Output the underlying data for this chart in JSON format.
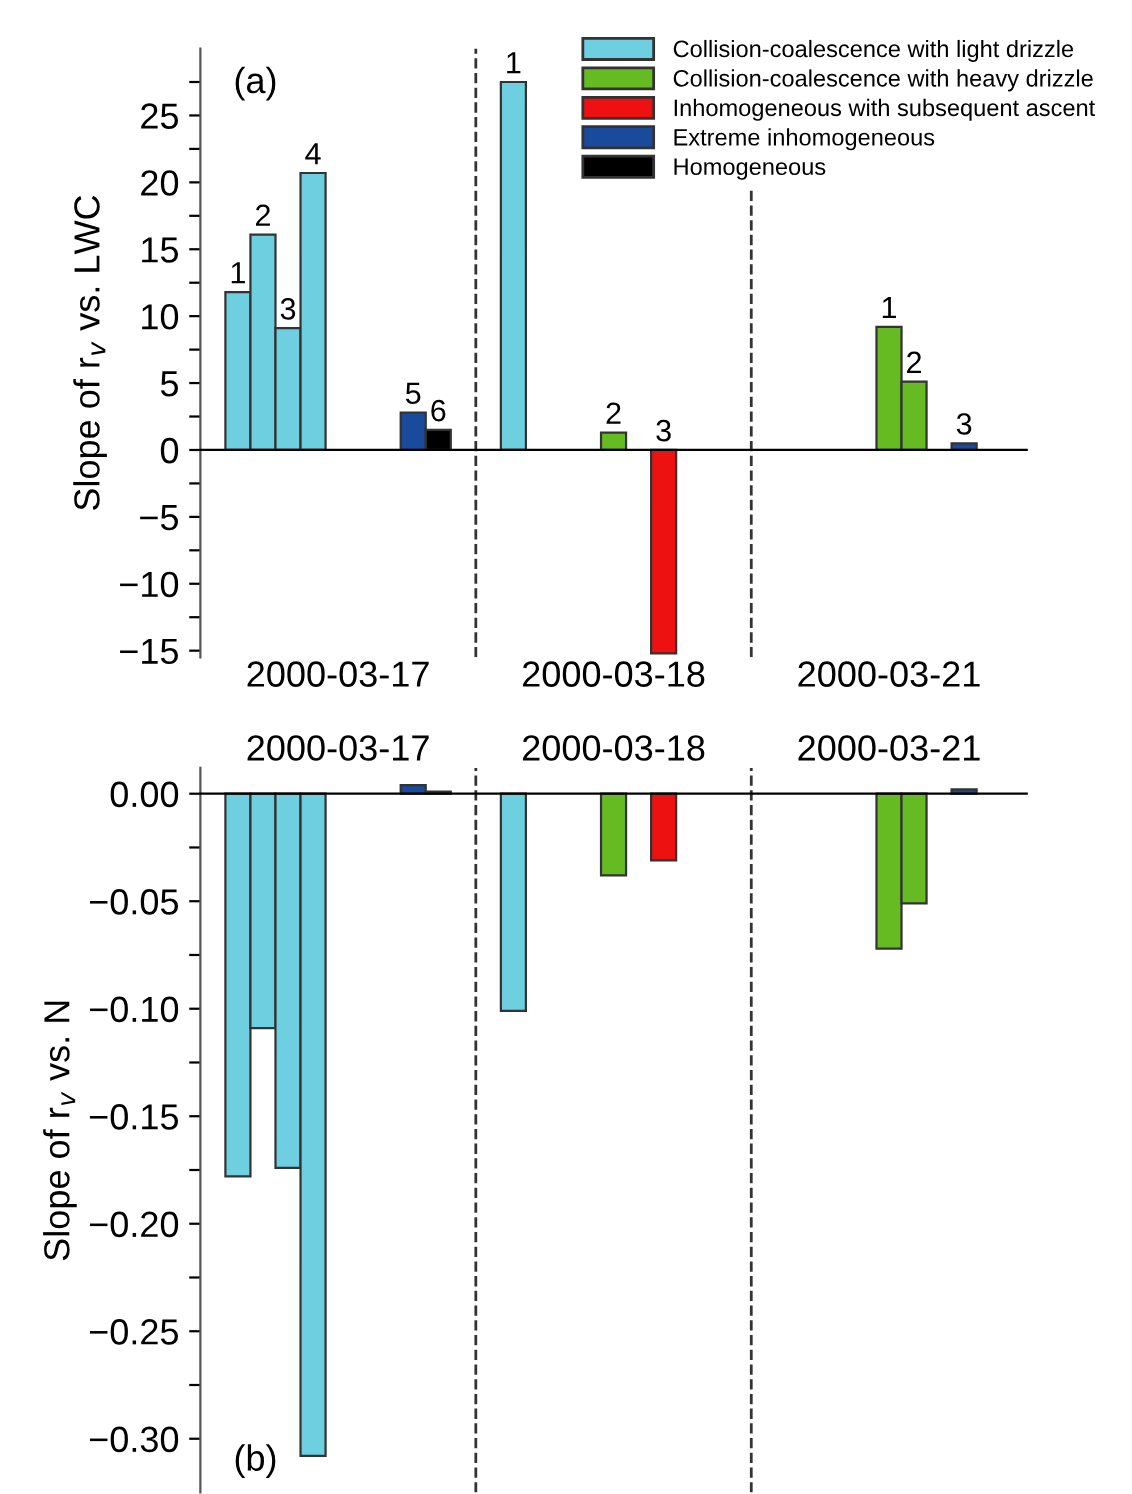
{
  "chart_data": [
    {
      "type": "bar",
      "categories": [
        null,
        null,
        null,
        null,
        null,
        null,
        null,
        null,
        null,
        null,
        null,
        null,
        null,
        null,
        null,
        null,
        null,
        null,
        null,
        null,
        null,
        null,
        null,
        null,
        null,
        null,
        null,
        null,
        null,
        null,
        null,
        null,
        null
      ],
      "ylabel": "Slope of r$_{v}$ vs. LWC",
      "ylim": [
        -15.5,
        30
      ],
      "yticks": [
        -15,
        {
          "value": -12.5,
          "label": null
        },
        -10,
        {
          "value": -7.5,
          "label": null
        },
        -5,
        {
          "value": -2.5,
          "label": null
        },
        0,
        {
          "value": 2.5,
          "label": null
        },
        5,
        {
          "value": 7.5,
          "label": null
        },
        10,
        {
          "value": 12.5,
          "label": null
        },
        15,
        {
          "value": 17.5,
          "label": null
        },
        20,
        {
          "value": 22.5,
          "label": null
        },
        25,
        {
          "value": 27.5,
          "label": null
        }
      ],
      "legend": "top right",
      "grid": false,
      "annotations": [
        "(a)",
        "2000-03-17",
        "2000-03-18",
        "2000-03-21",
        "1",
        "2",
        "3",
        "4",
        "5",
        "6",
        "1",
        "2",
        "3",
        "1",
        "2",
        "3"
      ],
      "series": [
        {
          "name": "Collision-coalescence with light drizzle",
          "color": "#6dcfe0",
          "values": [
            null,
            11.8,
            16.1,
            9.1,
            20.7,
            null,
            null,
            null,
            null,
            null,
            null,
            null,
            27.5,
            null,
            null,
            null,
            null,
            null,
            null,
            null,
            null,
            null,
            null,
            null,
            null,
            null,
            null,
            null,
            null,
            null,
            null,
            null,
            null
          ]
        },
        {
          "name": "Collision-coalescence with heavy drizzle",
          "color": "#66bb22",
          "values": [
            null,
            null,
            null,
            null,
            null,
            null,
            null,
            null,
            null,
            null,
            null,
            null,
            null,
            null,
            null,
            null,
            1.3,
            null,
            null,
            null,
            null,
            null,
            null,
            null,
            null,
            null,
            null,
            9.2,
            5.1,
            null,
            null,
            null,
            null
          ]
        },
        {
          "name": "Inhomogeneous with subsequent ascent",
          "color": "#ee1111",
          "values": [
            null,
            null,
            null,
            null,
            null,
            null,
            null,
            null,
            null,
            null,
            null,
            null,
            null,
            null,
            null,
            null,
            null,
            null,
            -15.2,
            null,
            null,
            null,
            null,
            null,
            null,
            null,
            null,
            null,
            null,
            null,
            null,
            null,
            null
          ]
        },
        {
          "name": "Extreme inhomogeneous",
          "color": "#1a4a9c",
          "values": [
            null,
            null,
            null,
            null,
            null,
            null,
            null,
            null,
            2.8,
            null,
            null,
            null,
            null,
            null,
            null,
            null,
            null,
            null,
            null,
            null,
            null,
            null,
            null,
            null,
            null,
            null,
            null,
            null,
            null,
            null,
            0.5,
            null,
            null
          ]
        },
        {
          "name": "Homogeneous",
          "color": "#000000",
          "values": [
            null,
            null,
            null,
            null,
            null,
            null,
            null,
            null,
            null,
            1.5,
            null,
            null,
            null,
            null,
            null,
            null,
            null,
            null,
            null,
            null,
            null,
            null,
            null,
            null,
            null,
            null,
            null,
            null,
            null,
            null,
            null,
            null,
            null
          ]
        }
      ]
    },
    {
      "type": "bar",
      "categories": [
        null,
        null,
        null,
        null,
        null,
        null,
        null,
        null,
        null,
        null,
        null,
        null,
        null,
        null,
        null,
        null,
        null,
        null,
        null,
        null,
        null,
        null,
        null,
        null,
        null,
        null,
        null,
        null,
        null,
        null,
        null,
        null,
        null
      ],
      "ylabel": "Slope of r$_{v}$ vs. N",
      "ylim": [
        -0.325,
        0.012
      ],
      "yticks": [
        {
          "value": -0.3,
          "label": "−0.30"
        },
        {
          "value": -0.275,
          "label": null
        },
        {
          "value": -0.25,
          "label": "−0.25"
        },
        {
          "value": -0.225,
          "label": null
        },
        {
          "value": -0.2,
          "label": "−0.20"
        },
        {
          "value": -0.175,
          "label": null
        },
        {
          "value": -0.15,
          "label": "−0.15"
        },
        {
          "value": -0.125,
          "label": null
        },
        {
          "value": -0.1,
          "label": "−0.10"
        },
        {
          "value": -0.075,
          "label": null
        },
        {
          "value": -0.05,
          "label": "−0.05"
        },
        {
          "value": -0.025,
          "label": null
        },
        {
          "value": 0,
          "label": "0.00"
        }
      ],
      "grid": false,
      "annotations": [
        "(b)",
        "2000-03-17",
        "2000-03-18",
        "2000-03-21"
      ],
      "series": [
        {
          "color": "#6dcfe0",
          "values": [
            null,
            -0.178,
            -0.109,
            -0.174,
            -0.308,
            null,
            null,
            null,
            null,
            null,
            null,
            null,
            -0.101,
            null,
            null,
            null,
            null,
            null,
            null,
            null,
            null,
            null,
            null,
            null,
            null,
            null,
            null,
            null,
            null,
            null,
            null,
            null,
            null
          ]
        },
        {
          "color": "#66bb22",
          "values": [
            null,
            null,
            null,
            null,
            null,
            null,
            null,
            null,
            null,
            null,
            null,
            null,
            null,
            null,
            null,
            null,
            -0.038,
            null,
            null,
            null,
            null,
            null,
            null,
            null,
            null,
            null,
            null,
            -0.072,
            -0.051,
            null,
            null,
            null,
            null
          ]
        },
        {
          "color": "#ee1111",
          "values": [
            null,
            null,
            null,
            null,
            null,
            null,
            null,
            null,
            null,
            null,
            null,
            null,
            null,
            null,
            null,
            null,
            null,
            null,
            -0.031,
            null,
            null,
            null,
            null,
            null,
            null,
            null,
            null,
            null,
            null,
            null,
            null,
            null,
            null
          ]
        },
        {
          "color": "#1a4a9c",
          "values": [
            null,
            null,
            null,
            null,
            null,
            null,
            null,
            null,
            0.004,
            null,
            null,
            null,
            null,
            null,
            null,
            null,
            null,
            null,
            null,
            null,
            null,
            null,
            null,
            null,
            null,
            null,
            null,
            null,
            null,
            null,
            0.002,
            null,
            null
          ]
        },
        {
          "color": "#000000",
          "values": [
            null,
            null,
            null,
            null,
            null,
            null,
            null,
            null,
            null,
            0.001,
            null,
            null,
            null,
            null,
            null,
            null,
            null,
            null,
            null,
            null,
            null,
            null,
            null,
            null,
            null,
            null,
            null,
            null,
            null,
            null,
            null,
            null,
            null
          ]
        }
      ]
    }
  ]
}
